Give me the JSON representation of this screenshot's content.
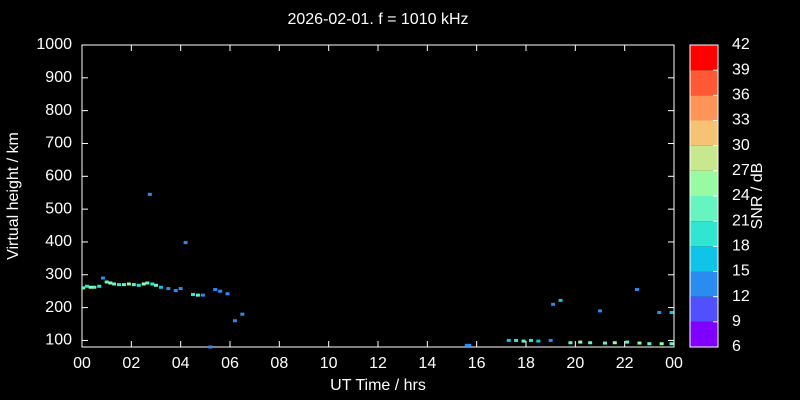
{
  "chart_data": {
    "type": "scatter",
    "title": "2026-02-01. f = 1010 kHz",
    "x_label": "UT Time / hrs",
    "y_label": "Virtual height / km",
    "xlim": [
      0,
      24
    ],
    "xticks": [
      {
        "value": 0,
        "label": "00"
      },
      {
        "value": 2,
        "label": "02"
      },
      {
        "value": 4,
        "label": "04"
      },
      {
        "value": 6,
        "label": "06"
      },
      {
        "value": 8,
        "label": "08"
      },
      10,
      12,
      14,
      16,
      18,
      20,
      22,
      {
        "value": 24,
        "label": "00"
      }
    ],
    "ylim": [
      80,
      1000
    ],
    "yticks": [
      100,
      200,
      300,
      400,
      500,
      600,
      700,
      800,
      900,
      1000
    ],
    "x": [
      0.05,
      0.2,
      0.35,
      0.5,
      0.7,
      0.85,
      1.0,
      1.15,
      1.3,
      1.5,
      1.7,
      1.9,
      2.1,
      2.3,
      2.5,
      2.65,
      2.75,
      2.85,
      3.0,
      3.2,
      3.5,
      3.8,
      4.0,
      4.2,
      4.5,
      4.7,
      4.9,
      5.2,
      5.4,
      5.6,
      5.9,
      6.2,
      6.5,
      15.6,
      15.7,
      17.3,
      17.6,
      17.9,
      18.2,
      18.5,
      19.0,
      19.1,
      19.4,
      19.8,
      20.2,
      20.6,
      21.0,
      21.2,
      21.6,
      22.1,
      22.5,
      22.6,
      23.0,
      23.4,
      23.5,
      23.9,
      23.9
    ],
    "values": [
      260,
      265,
      262,
      262,
      265,
      290,
      278,
      275,
      272,
      270,
      270,
      272,
      270,
      268,
      272,
      275,
      545,
      272,
      268,
      262,
      258,
      252,
      258,
      398,
      240,
      238,
      238,
      80,
      255,
      250,
      242,
      160,
      180,
      85,
      85,
      100,
      100,
      98,
      100,
      98,
      100,
      210,
      222,
      93,
      95,
      93,
      190,
      92,
      93,
      95,
      255,
      92,
      90,
      185,
      90,
      185,
      90
    ],
    "snr": [
      21,
      18,
      24,
      21,
      18,
      12,
      21,
      24,
      21,
      18,
      21,
      24,
      21,
      18,
      24,
      21,
      12,
      18,
      21,
      15,
      12,
      12,
      12,
      12,
      18,
      21,
      12,
      12,
      12,
      12,
      12,
      12,
      12,
      12,
      12,
      15,
      18,
      21,
      18,
      15,
      12,
      12,
      15,
      21,
      24,
      21,
      12,
      21,
      24,
      21,
      12,
      24,
      21,
      12,
      24,
      15,
      21
    ],
    "colorbar": {
      "label": "SNR / dB",
      "clim": [
        6,
        42
      ],
      "ticks": [
        6,
        9,
        12,
        15,
        18,
        21,
        24,
        27,
        30,
        33,
        36,
        39,
        42
      ],
      "colors": [
        "#8000ff",
        "#5050ff",
        "#2a8cf0",
        "#10c4e8",
        "#30e6d2",
        "#66f5c0",
        "#98fba4",
        "#c8e890",
        "#f6c274",
        "#ff9458",
        "#ff5834",
        "#ff0000"
      ]
    }
  }
}
